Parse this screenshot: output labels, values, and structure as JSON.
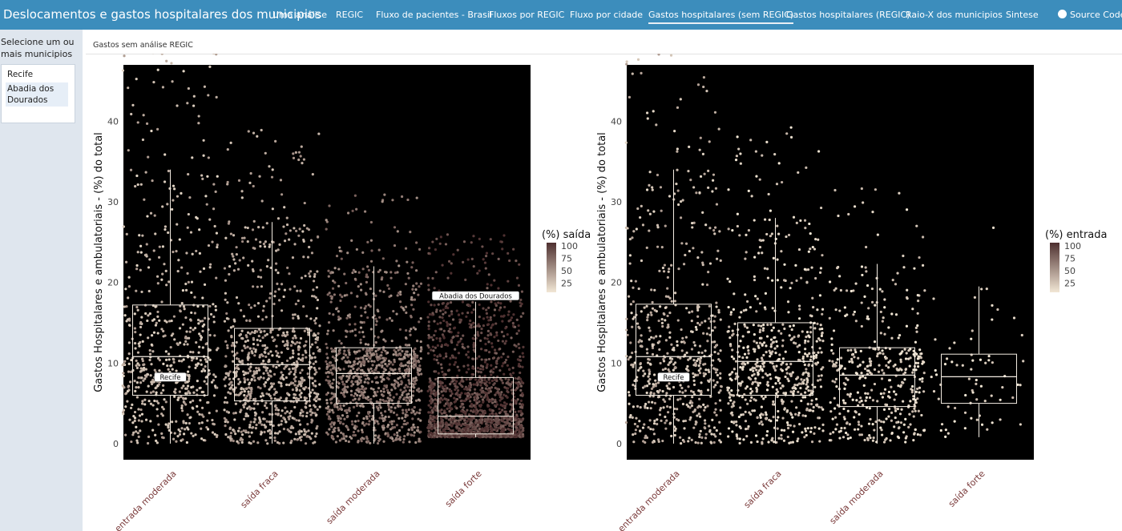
{
  "app": {
    "title": "Deslocamentos e gastos hospitalares dos municipios",
    "tabs": [
      {
        "label": "Uma análise"
      },
      {
        "label": "REGIC"
      },
      {
        "label": "Fluxo de pacientes - Brasil"
      },
      {
        "label": "Fluxos por REGIC"
      },
      {
        "label": "Fluxo por cidade"
      },
      {
        "label": "Gastos hospitalares (sem REGIC)",
        "active": true
      },
      {
        "label": "Gastos hospitalares (REGIC)"
      },
      {
        "label": "Raio-X dos municipios"
      },
      {
        "label": "Sintese"
      }
    ],
    "source_code_label": "Source Code",
    "source_icon": "github-icon"
  },
  "sidebar": {
    "select_label": "Selecione um ou mais municipios",
    "selected": [
      "Recife",
      "Abadia dos Dourados"
    ]
  },
  "main": {
    "panel_title": "Gastos sem análise REGIC"
  },
  "colors": {
    "navbar": "#3c8dbc",
    "plot_bg": "#000000",
    "point_low": "#f2e7d5",
    "point_high": "#4e3030"
  },
  "chart_data": [
    {
      "type": "scatter",
      "subtype": "jittered box plot with points",
      "ylabel": "Gastos Hospitalares e ambulatoriais - (%) do total",
      "xlabel": "",
      "categories": [
        "entrada moderada",
        "saída fraca",
        "saída moderada",
        "saída forte"
      ],
      "ylim": [
        -2,
        47
      ],
      "yticks": [
        0,
        10,
        20,
        30,
        40
      ],
      "legend": {
        "title": "(%) saída",
        "ticks": [
          100,
          75,
          50,
          25
        ],
        "position": "right"
      },
      "boxes": [
        {
          "category": "entrada moderada",
          "min": 0,
          "q1": 6,
          "median": 10.8,
          "q3": 17.2,
          "max": 34
        },
        {
          "category": "saída fraca",
          "min": 0,
          "q1": 5.3,
          "median": 9.8,
          "q3": 14.3,
          "max": 27.5
        },
        {
          "category": "saída moderada",
          "min": 0,
          "q1": 5.0,
          "median": 8.7,
          "q3": 11.9,
          "max": 22
        },
        {
          "category": "saída forte",
          "min": 0.8,
          "q1": 1.2,
          "median": 3.4,
          "q3": 8.2,
          "max": 17.6
        }
      ],
      "point_counts": [
        620,
        900,
        1050,
        1750
      ],
      "point_color_level": [
        0.25,
        0.35,
        0.6,
        0.9
      ],
      "labels": [
        {
          "text": "Recife",
          "category": "entrada moderada",
          "y": 8.2
        },
        {
          "text": "Abadia dos Dourados",
          "category": "saída forte",
          "y": 18.3
        }
      ]
    },
    {
      "type": "scatter",
      "subtype": "jittered box plot with points",
      "ylabel": "Gastos Hospitalares e ambulatoriais - (%) do total",
      "xlabel": "",
      "categories": [
        "entrada moderada",
        "saída fraca",
        "saída moderada",
        "saída forte"
      ],
      "ylim": [
        -2,
        47
      ],
      "yticks": [
        0,
        10,
        20,
        30,
        40
      ],
      "legend": {
        "title": "(%) entrada",
        "ticks": [
          100,
          75,
          50,
          25
        ],
        "position": "right"
      },
      "boxes": [
        {
          "category": "entrada moderada",
          "min": 0,
          "q1": 6,
          "median": 10.8,
          "q3": 17.3,
          "max": 34
        },
        {
          "category": "saída fraca",
          "min": 0,
          "q1": 6.0,
          "median": 10.2,
          "q3": 15.0,
          "max": 28
        },
        {
          "category": "saída moderada",
          "min": 0,
          "q1": 4.6,
          "median": 8.5,
          "q3": 11.9,
          "max": 22.3
        },
        {
          "category": "saída forte",
          "min": 0.8,
          "q1": 5.0,
          "median": 8.3,
          "q3": 11.1,
          "max": 19.5
        }
      ],
      "point_counts": [
        620,
        650,
        420,
        70
      ],
      "point_color_level": [
        0.25,
        0.15,
        0.12,
        0.1
      ],
      "labels": [
        {
          "text": "Recife",
          "category": "entrada moderada",
          "y": 8.2
        }
      ]
    }
  ]
}
